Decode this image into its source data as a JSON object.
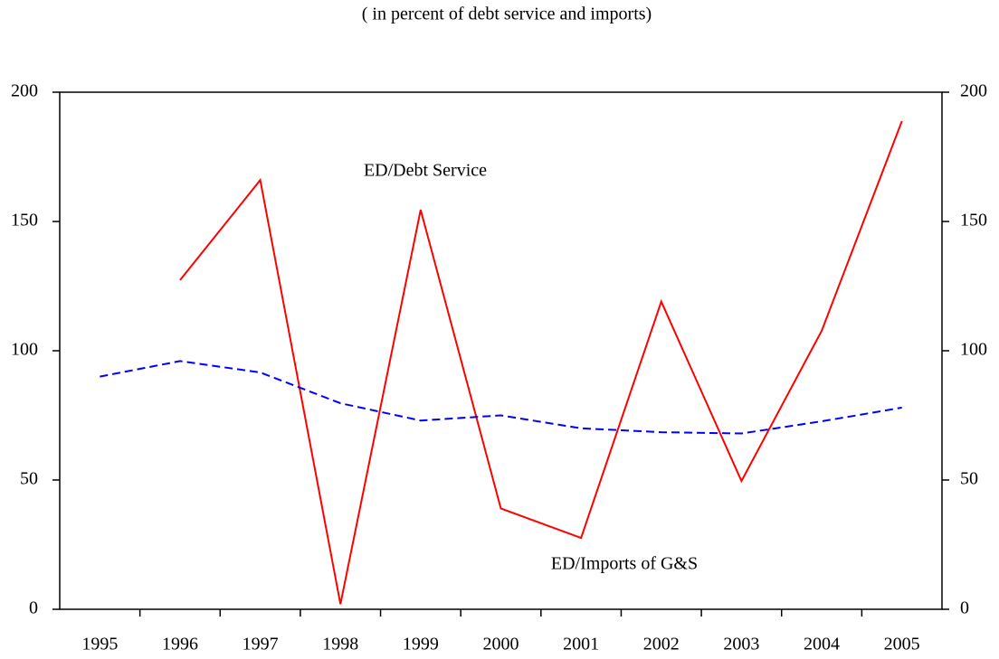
{
  "chart_data": {
    "type": "line",
    "subtitle": "( in percent of debt service and imports)",
    "categories": [
      "1995",
      "1996",
      "1997",
      "1998",
      "1999",
      "2000",
      "2001",
      "2002",
      "2003",
      "2004",
      "2005"
    ],
    "series": [
      {
        "name": "ED/Debt Service",
        "color": "#ff0000",
        "dash": false,
        "values": [
          null,
          127.3,
          166,
          2,
          154.5,
          39,
          27.6,
          119,
          49.6,
          107.7,
          188.8
        ]
      },
      {
        "name": "ED/Imports of G&S",
        "color": "#0000ff",
        "dash": true,
        "values": [
          90,
          96,
          91.6,
          79.7,
          73,
          75,
          70,
          68.5,
          68,
          72.7,
          78
        ]
      }
    ],
    "ylim": [
      0,
      200
    ],
    "yticks": [
      0,
      50,
      100,
      150,
      200
    ],
    "y2lim": [
      0,
      200
    ],
    "y2ticks": [
      0,
      50,
      100,
      150,
      200
    ]
  }
}
